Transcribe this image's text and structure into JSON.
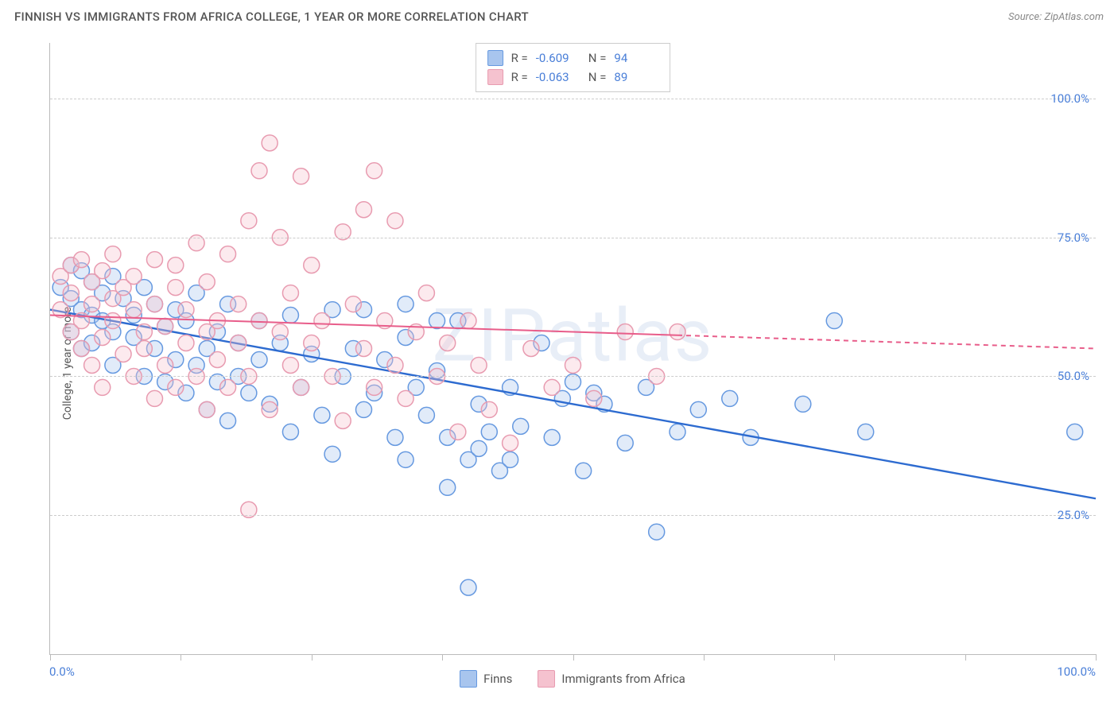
{
  "title": "FINNISH VS IMMIGRANTS FROM AFRICA COLLEGE, 1 YEAR OR MORE CORRELATION CHART",
  "source_label": "Source: ",
  "source_name": "ZipAtlas.com",
  "watermark": "ZIPatlas",
  "y_axis_label": "College, 1 year or more",
  "chart": {
    "type": "scatter",
    "xlim": [
      0,
      100
    ],
    "ylim": [
      0,
      110
    ],
    "x_ticks": [
      0,
      12.5,
      25,
      37.5,
      50,
      62.5,
      75,
      87.5,
      100
    ],
    "x_tick_labels_shown": {
      "0": "0.0%",
      "100": "100.0%"
    },
    "y_grid": [
      25,
      50,
      75,
      100
    ],
    "y_tick_labels": {
      "25": "25.0%",
      "50": "50.0%",
      "75": "75.0%",
      "100": "100.0%"
    },
    "background_color": "#ffffff",
    "grid_color": "#cccccc",
    "axis_color": "#bbbbbb",
    "tick_label_color": "#4a7fd8",
    "marker_radius": 10,
    "marker_stroke_width": 1.5,
    "marker_fill_opacity": 0.35,
    "series": [
      {
        "key": "finns",
        "label": "Finns",
        "stroke": "#6699e0",
        "fill": "#a8c5ee",
        "line_color": "#2d6bd0",
        "line_width": 2.4,
        "line_dash_after_x": null,
        "trend": {
          "x1": 0,
          "y1": 62,
          "x2": 100,
          "y2": 28
        },
        "R": "-0.609",
        "N": "94",
        "points": [
          [
            1,
            66
          ],
          [
            2,
            64
          ],
          [
            2,
            58
          ],
          [
            2,
            70
          ],
          [
            3,
            62
          ],
          [
            3,
            55
          ],
          [
            3,
            69
          ],
          [
            4,
            67
          ],
          [
            4,
            56
          ],
          [
            4,
            61
          ],
          [
            5,
            65
          ],
          [
            5,
            60
          ],
          [
            6,
            52
          ],
          [
            6,
            68
          ],
          [
            6,
            58
          ],
          [
            7,
            64
          ],
          [
            8,
            57
          ],
          [
            8,
            61
          ],
          [
            9,
            66
          ],
          [
            9,
            50
          ],
          [
            10,
            55
          ],
          [
            10,
            63
          ],
          [
            11,
            49
          ],
          [
            11,
            59
          ],
          [
            12,
            62
          ],
          [
            12,
            53
          ],
          [
            13,
            47
          ],
          [
            13,
            60
          ],
          [
            14,
            65
          ],
          [
            14,
            52
          ],
          [
            15,
            55
          ],
          [
            15,
            44
          ],
          [
            16,
            58
          ],
          [
            16,
            49
          ],
          [
            17,
            63
          ],
          [
            17,
            42
          ],
          [
            18,
            56
          ],
          [
            18,
            50
          ],
          [
            19,
            47
          ],
          [
            20,
            53
          ],
          [
            20,
            60
          ],
          [
            21,
            45
          ],
          [
            22,
            56
          ],
          [
            23,
            40
          ],
          [
            23,
            61
          ],
          [
            24,
            48
          ],
          [
            25,
            54
          ],
          [
            26,
            43
          ],
          [
            27,
            62
          ],
          [
            27,
            36
          ],
          [
            28,
            50
          ],
          [
            29,
            55
          ],
          [
            30,
            44
          ],
          [
            30,
            62
          ],
          [
            31,
            47
          ],
          [
            32,
            53
          ],
          [
            33,
            39
          ],
          [
            34,
            57
          ],
          [
            34,
            35
          ],
          [
            35,
            48
          ],
          [
            36,
            43
          ],
          [
            37,
            51
          ],
          [
            38,
            39
          ],
          [
            38,
            30
          ],
          [
            39,
            60
          ],
          [
            40,
            35
          ],
          [
            41,
            37
          ],
          [
            41,
            45
          ],
          [
            42,
            40
          ],
          [
            43,
            33
          ],
          [
            44,
            48
          ],
          [
            44,
            35
          ],
          [
            45,
            41
          ],
          [
            47,
            56
          ],
          [
            48,
            39
          ],
          [
            49,
            46
          ],
          [
            50,
            49
          ],
          [
            51,
            33
          ],
          [
            52,
            47
          ],
          [
            53,
            45
          ],
          [
            55,
            38
          ],
          [
            57,
            48
          ],
          [
            58,
            22
          ],
          [
            60,
            40
          ],
          [
            62,
            44
          ],
          [
            65,
            46
          ],
          [
            67,
            39
          ],
          [
            72,
            45
          ],
          [
            75,
            60
          ],
          [
            78,
            40
          ],
          [
            40,
            12
          ],
          [
            98,
            40
          ],
          [
            34,
            63
          ],
          [
            37,
            60
          ]
        ]
      },
      {
        "key": "africa",
        "label": "Immigrants from Africa",
        "stroke": "#e89bb0",
        "fill": "#f5c2cf",
        "line_color": "#e85d8a",
        "line_width": 2,
        "line_dash_after_x": 60,
        "trend": {
          "x1": 0,
          "y1": 61,
          "x2": 100,
          "y2": 55
        },
        "R": "-0.063",
        "N": "89",
        "points": [
          [
            1,
            62
          ],
          [
            1,
            68
          ],
          [
            2,
            70
          ],
          [
            2,
            58
          ],
          [
            2,
            65
          ],
          [
            3,
            60
          ],
          [
            3,
            71
          ],
          [
            3,
            55
          ],
          [
            4,
            67
          ],
          [
            4,
            52
          ],
          [
            4,
            63
          ],
          [
            5,
            69
          ],
          [
            5,
            57
          ],
          [
            5,
            48
          ],
          [
            6,
            64
          ],
          [
            6,
            60
          ],
          [
            6,
            72
          ],
          [
            7,
            54
          ],
          [
            7,
            66
          ],
          [
            8,
            50
          ],
          [
            8,
            62
          ],
          [
            8,
            68
          ],
          [
            9,
            58
          ],
          [
            9,
            55
          ],
          [
            10,
            71
          ],
          [
            10,
            46
          ],
          [
            10,
            63
          ],
          [
            11,
            59
          ],
          [
            11,
            52
          ],
          [
            12,
            66
          ],
          [
            12,
            70
          ],
          [
            12,
            48
          ],
          [
            13,
            56
          ],
          [
            13,
            62
          ],
          [
            14,
            50
          ],
          [
            14,
            74
          ],
          [
            15,
            58
          ],
          [
            15,
            44
          ],
          [
            15,
            67
          ],
          [
            16,
            60
          ],
          [
            16,
            53
          ],
          [
            17,
            72
          ],
          [
            17,
            48
          ],
          [
            18,
            63
          ],
          [
            18,
            56
          ],
          [
            19,
            78
          ],
          [
            19,
            50
          ],
          [
            20,
            87
          ],
          [
            20,
            60
          ],
          [
            21,
            92
          ],
          [
            21,
            44
          ],
          [
            22,
            58
          ],
          [
            22,
            75
          ],
          [
            23,
            52
          ],
          [
            23,
            65
          ],
          [
            24,
            86
          ],
          [
            24,
            48
          ],
          [
            25,
            56
          ],
          [
            25,
            70
          ],
          [
            26,
            60
          ],
          [
            27,
            50
          ],
          [
            28,
            76
          ],
          [
            28,
            42
          ],
          [
            29,
            63
          ],
          [
            30,
            80
          ],
          [
            30,
            55
          ],
          [
            31,
            87
          ],
          [
            31,
            48
          ],
          [
            32,
            60
          ],
          [
            33,
            52
          ],
          [
            33,
            78
          ],
          [
            34,
            46
          ],
          [
            35,
            58
          ],
          [
            36,
            65
          ],
          [
            37,
            50
          ],
          [
            38,
            56
          ],
          [
            39,
            40
          ],
          [
            40,
            60
          ],
          [
            41,
            52
          ],
          [
            42,
            44
          ],
          [
            44,
            38
          ],
          [
            46,
            55
          ],
          [
            48,
            48
          ],
          [
            50,
            52
          ],
          [
            52,
            46
          ],
          [
            55,
            58
          ],
          [
            58,
            50
          ],
          [
            19,
            26
          ],
          [
            60,
            58
          ]
        ]
      }
    ]
  },
  "stats_box": {
    "R_label": "R =",
    "N_label": "N ="
  }
}
